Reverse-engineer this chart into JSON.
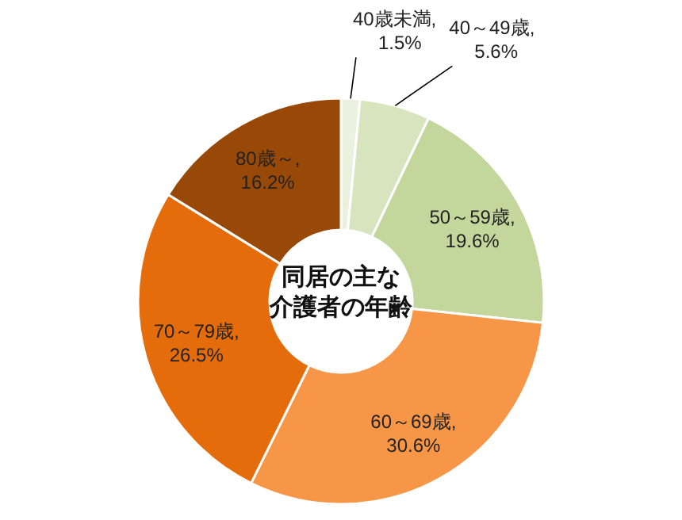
{
  "chart_data": {
    "type": "donut",
    "title": "同居の主な介護者の年齢",
    "categories": [
      "40歳未満",
      "40～49歳",
      "50～59歳",
      "60～69歳",
      "70～79歳",
      "80歳～"
    ],
    "value_labels": [
      "1.5%",
      "5.6%",
      "19.6%",
      "30.6%",
      "26.5%",
      "16.2%"
    ],
    "data_labels": true,
    "annotations": [
      ",",
      ",",
      ",",
      ",",
      ",",
      ","
    ],
    "values": [
      1.5,
      5.6,
      19.6,
      30.6,
      26.5,
      16.2
    ],
    "colors": [
      "#ebf1de",
      "#d7e4bd",
      "#c3d69b",
      "#f79646",
      "#e46c0a",
      "#984807"
    ]
  }
}
